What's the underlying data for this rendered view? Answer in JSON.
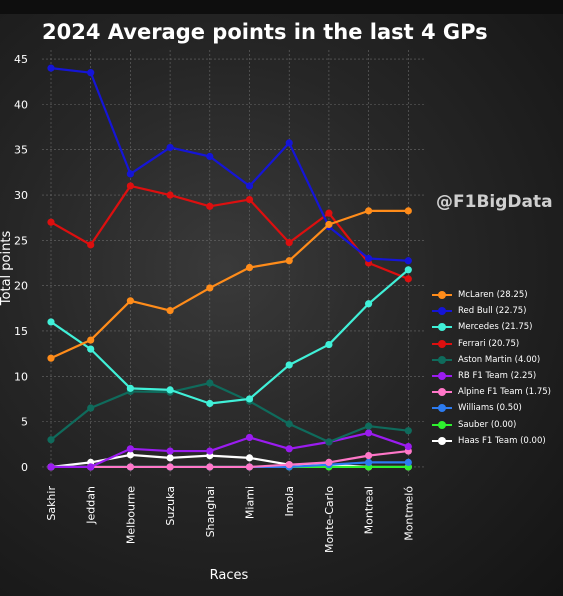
{
  "watermark": "@F1BigData",
  "chart_data": {
    "type": "line",
    "title": "2024 Average points in the last 4 GPs",
    "xlabel": "Races",
    "ylabel": "Total points",
    "ylim": [
      -1,
      46
    ],
    "yticks": [
      0,
      5,
      10,
      15,
      20,
      25,
      30,
      35,
      40,
      45
    ],
    "grid": true,
    "legend_position": "right",
    "categories": [
      "Sakhir",
      "Jeddah",
      "Melbourne",
      "Suzuka",
      "Shanghai",
      "Miami",
      "Imola",
      "Monte-Carlo",
      "Montreal",
      "Montmeló"
    ],
    "series": [
      {
        "name": "McLaren (28.25)",
        "color": "#ff8c1a",
        "values": [
          12,
          14,
          18.33,
          17.25,
          19.75,
          22,
          22.75,
          26.75,
          28.25,
          28.25
        ]
      },
      {
        "name": "Red Bull (22.75)",
        "color": "#1515d6",
        "values": [
          44,
          43.5,
          32.33,
          35.25,
          34.25,
          31,
          35.75,
          26.5,
          23,
          22.75
        ]
      },
      {
        "name": "Mercedes (21.75)",
        "color": "#40f0d8",
        "values": [
          16,
          13,
          8.67,
          8.5,
          7,
          7.5,
          11.25,
          13.5,
          18,
          21.75
        ]
      },
      {
        "name": "Ferrari (20.75)",
        "color": "#dd0f0f",
        "values": [
          27,
          24.5,
          31,
          30,
          28.75,
          29.5,
          24.75,
          28,
          22.5,
          20.75
        ]
      },
      {
        "name": "Aston Martin (4.00)",
        "color": "#0f6b5c",
        "values": [
          3,
          6.5,
          8.33,
          8.25,
          9.25,
          7.25,
          4.75,
          2.75,
          4.5,
          4
        ]
      },
      {
        "name": "RB F1 Team (2.25)",
        "color": "#9b1cf0",
        "values": [
          0,
          0,
          2,
          1.75,
          1.75,
          3.25,
          2,
          2.75,
          3.75,
          2.25
        ]
      },
      {
        "name": "Alpine F1 Team (1.75)",
        "color": "#ff77c8",
        "values": [
          0,
          0,
          0,
          0,
          0,
          0,
          0.25,
          0.5,
          1.25,
          1.75
        ]
      },
      {
        "name": "Williams (0.50)",
        "color": "#2c7bf0",
        "values": [
          0,
          0,
          0,
          0,
          0,
          0,
          0,
          0.25,
          0.5,
          0.5
        ]
      },
      {
        "name": "Sauber (0.00)",
        "color": "#2ef02e",
        "values": [
          0,
          0,
          0,
          0,
          0,
          0,
          0,
          0,
          0,
          0
        ]
      },
      {
        "name": "Haas F1 Team (0.00)",
        "color": "#ffffff",
        "values": [
          0,
          0.5,
          1.33,
          1,
          1.25,
          1,
          0.25,
          0.25,
          0,
          0
        ]
      }
    ]
  }
}
